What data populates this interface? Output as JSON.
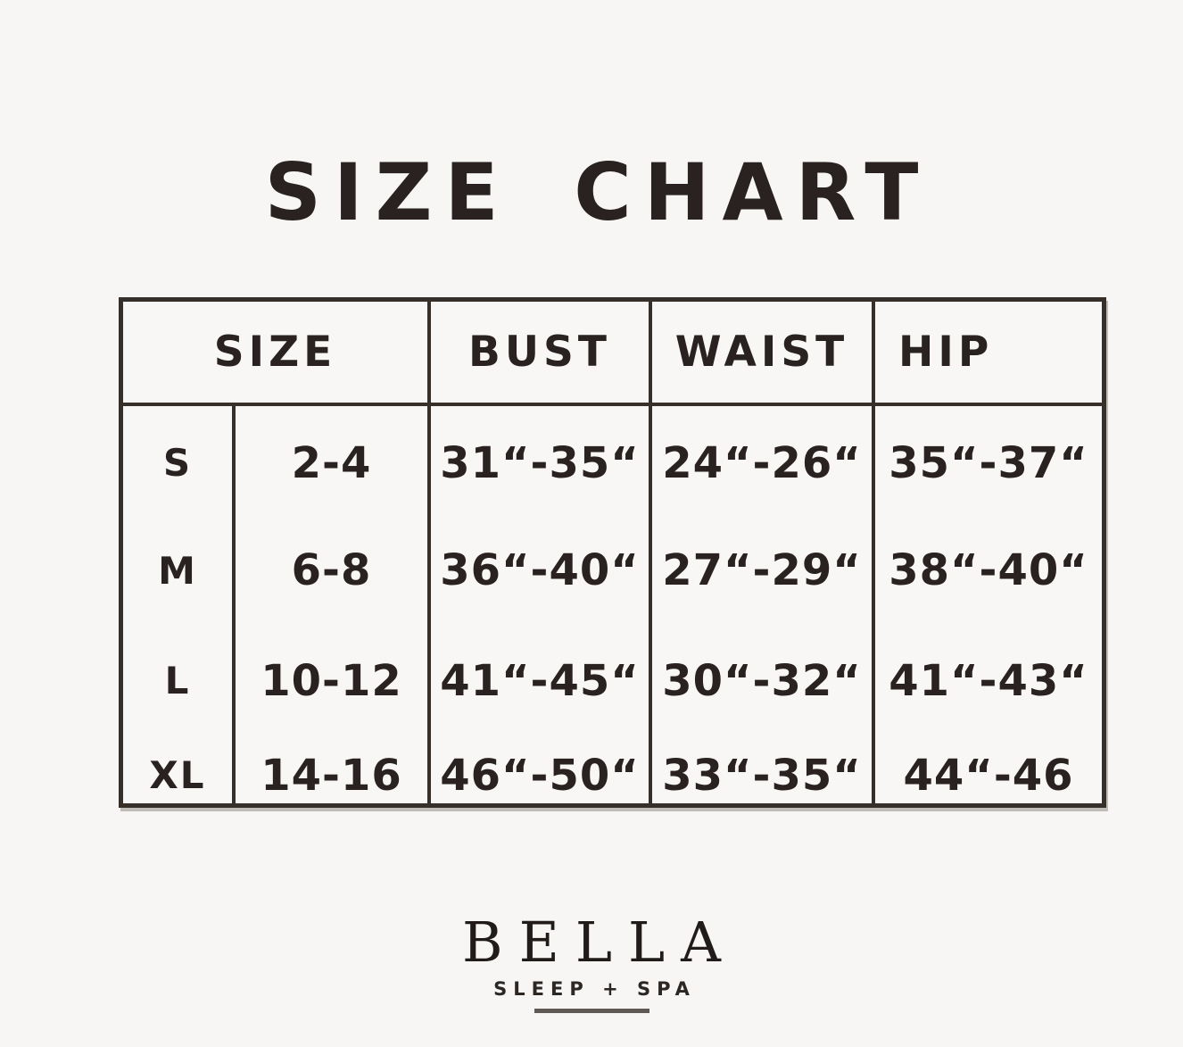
{
  "colors": {
    "background": "#f7f6f4",
    "text": "#292220",
    "table_border": "#372f29",
    "logo_underline": "#5f5a55"
  },
  "chart_data": {
    "type": "table",
    "title": "SIZE CHART",
    "headers": {
      "size": "SIZE",
      "bust": "BUST",
      "waist": "WAIST",
      "hip": "HIP"
    },
    "rows": [
      [
        "S",
        "2-4",
        "31“-35“",
        "24“-26“",
        "35“-37“"
      ],
      [
        "M",
        "6-8",
        "36“-40“",
        "27“-29“",
        "38“-40“"
      ],
      [
        "L",
        "10-12",
        "41“-45“",
        "30“-32“",
        "41“-43“"
      ],
      [
        "XL",
        "14-16",
        "46“-50“",
        "33“-35“",
        "44“-46"
      ]
    ]
  },
  "logo": {
    "brand": "BELLA",
    "tagline": "SLEEP + SPA"
  }
}
